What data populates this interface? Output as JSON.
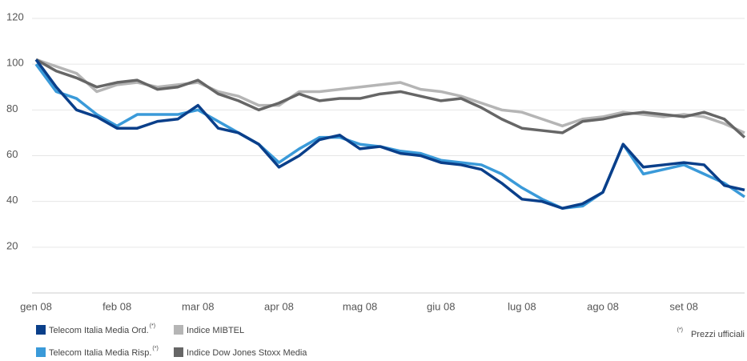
{
  "chart_data": {
    "type": "line",
    "categories": [
      "gen 08",
      null,
      null,
      null,
      "feb 08",
      null,
      null,
      null,
      "mar 08",
      null,
      null,
      null,
      "apr 08",
      null,
      null,
      null,
      "mag 08",
      null,
      null,
      null,
      "giu 08",
      null,
      null,
      null,
      "lug 08",
      null,
      null,
      null,
      "ago 08",
      null,
      null,
      null,
      "set 08",
      null,
      null,
      null
    ],
    "series": [
      {
        "name": "Indice MIBTEL",
        "color": "#b5b5b5",
        "values": [
          102,
          99,
          96,
          88,
          91,
          92,
          90,
          91,
          92,
          88,
          86,
          82,
          82,
          88,
          88,
          89,
          90,
          91,
          92,
          89,
          88,
          86,
          83,
          80,
          79,
          76,
          73,
          76,
          77,
          79,
          78,
          77,
          78,
          77,
          74,
          70
        ]
      },
      {
        "name": "Indice Dow Jones Stoxx Media",
        "color": "#666666",
        "values": [
          102,
          97,
          94,
          90,
          92,
          93,
          89,
          90,
          93,
          87,
          84,
          80,
          83,
          87,
          84,
          85,
          85,
          87,
          88,
          86,
          84,
          85,
          81,
          76,
          72,
          71,
          70,
          75,
          76,
          78,
          79,
          78,
          77,
          79,
          76,
          68
        ]
      },
      {
        "name": "Telecom Italia Media Risp.",
        "color": "#3a9ad9",
        "values": [
          100,
          88,
          85,
          78,
          73,
          78,
          78,
          78,
          80,
          75,
          70,
          65,
          57,
          63,
          68,
          68,
          65,
          64,
          62,
          61,
          58,
          57,
          56,
          52,
          46,
          41,
          37,
          38,
          44,
          65,
          52,
          54,
          56,
          52,
          48,
          42
        ]
      },
      {
        "name": "Telecom Italia Media Ord.",
        "color": "#0a3f8a",
        "values": [
          102,
          90,
          80,
          77,
          72,
          72,
          75,
          76,
          82,
          72,
          70,
          65,
          55,
          60,
          67,
          69,
          63,
          64,
          61,
          60,
          57,
          56,
          54,
          48,
          41,
          40,
          37,
          39,
          44,
          65,
          55,
          56,
          57,
          56,
          47,
          45
        ]
      }
    ],
    "legend_note_marker": "(*)",
    "footnote": {
      "marker": "(*)",
      "text": "Prezzi ufficiali"
    },
    "ylim": [
      0,
      120
    ],
    "yticks": [
      20,
      40,
      60,
      80,
      100,
      120
    ],
    "grid": true
  }
}
